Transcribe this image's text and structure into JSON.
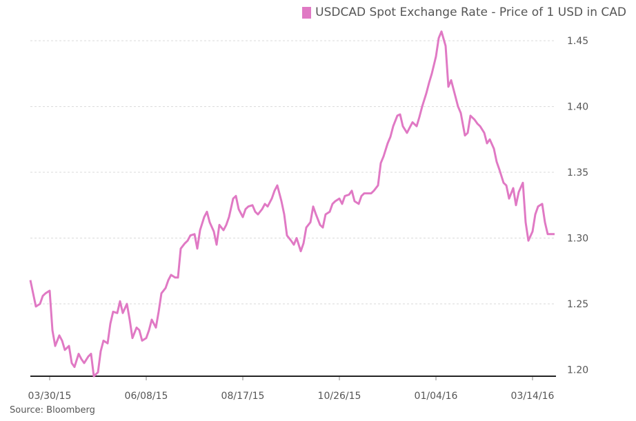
{
  "colors": {
    "series": "#e079c4",
    "grid": "#d9d9d9",
    "axis": "#222222",
    "text": "#555555"
  },
  "legend": {
    "label": "USDCAD Spot Exchange Rate - Price of 1 USD in CAD"
  },
  "source": "Source: Bloomberg",
  "chart_data": {
    "type": "line",
    "title": "",
    "xlabel": "",
    "ylabel": "",
    "ylim": [
      1.195,
      1.46
    ],
    "y_ticks": [
      1.2,
      1.25,
      1.3,
      1.35,
      1.4,
      1.45
    ],
    "y_tick_labels": [
      "1.20",
      "1.25",
      "1.30",
      "1.35",
      "1.40",
      "1.45"
    ],
    "x_ticks": [
      "2015-03-30",
      "2015-06-08",
      "2015-08-17",
      "2015-10-26",
      "2016-01-04",
      "2016-03-14"
    ],
    "x_tick_labels": [
      "03/30/15",
      "06/08/15",
      "08/17/15",
      "10/26/15",
      "01/04/16",
      "03/14/16"
    ],
    "xlim": [
      "2015-03-16",
      "2016-03-31"
    ],
    "grid": true,
    "legend_position": "top-right",
    "series": [
      {
        "name": "USDCAD Spot Exchange Rate - Price of 1 USD in CAD",
        "x": [
          "2015-03-16",
          "2015-03-18",
          "2015-03-20",
          "2015-03-23",
          "2015-03-25",
          "2015-03-27",
          "2015-03-30",
          "2015-04-01",
          "2015-04-03",
          "2015-04-06",
          "2015-04-08",
          "2015-04-10",
          "2015-04-13",
          "2015-04-15",
          "2015-04-17",
          "2015-04-20",
          "2015-04-22",
          "2015-04-24",
          "2015-04-27",
          "2015-04-29",
          "2015-05-01",
          "2015-05-04",
          "2015-05-06",
          "2015-05-08",
          "2015-05-11",
          "2015-05-13",
          "2015-05-15",
          "2015-05-18",
          "2015-05-20",
          "2015-05-22",
          "2015-05-25",
          "2015-05-27",
          "2015-05-29",
          "2015-06-01",
          "2015-06-03",
          "2015-06-05",
          "2015-06-08",
          "2015-06-10",
          "2015-06-12",
          "2015-06-15",
          "2015-06-17",
          "2015-06-19",
          "2015-06-22",
          "2015-06-24",
          "2015-06-26",
          "2015-06-29",
          "2015-07-01",
          "2015-07-03",
          "2015-07-06",
          "2015-07-08",
          "2015-07-10",
          "2015-07-13",
          "2015-07-15",
          "2015-07-17",
          "2015-07-20",
          "2015-07-22",
          "2015-07-24",
          "2015-07-27",
          "2015-07-29",
          "2015-07-31",
          "2015-08-03",
          "2015-08-05",
          "2015-08-07",
          "2015-08-10",
          "2015-08-12",
          "2015-08-14",
          "2015-08-17",
          "2015-08-19",
          "2015-08-21",
          "2015-08-24",
          "2015-08-26",
          "2015-08-28",
          "2015-08-31",
          "2015-09-02",
          "2015-09-04",
          "2015-09-07",
          "2015-09-09",
          "2015-09-11",
          "2015-09-14",
          "2015-09-16",
          "2015-09-18",
          "2015-09-21",
          "2015-09-23",
          "2015-09-25",
          "2015-09-28",
          "2015-09-30",
          "2015-10-02",
          "2015-10-05",
          "2015-10-07",
          "2015-10-09",
          "2015-10-12",
          "2015-10-14",
          "2015-10-16",
          "2015-10-19",
          "2015-10-21",
          "2015-10-23",
          "2015-10-26",
          "2015-10-28",
          "2015-10-30",
          "2015-11-02",
          "2015-11-04",
          "2015-11-06",
          "2015-11-09",
          "2015-11-11",
          "2015-11-13",
          "2015-11-16",
          "2015-11-18",
          "2015-11-20",
          "2015-11-23",
          "2015-11-25",
          "2015-11-27",
          "2015-11-30",
          "2015-12-02",
          "2015-12-04",
          "2015-12-07",
          "2015-12-09",
          "2015-12-11",
          "2015-12-14",
          "2015-12-16",
          "2015-12-18",
          "2015-12-21",
          "2015-12-23",
          "2015-12-25",
          "2015-12-28",
          "2015-12-30",
          "2016-01-01",
          "2016-01-04",
          "2016-01-06",
          "2016-01-08",
          "2016-01-11",
          "2016-01-13",
          "2016-01-15",
          "2016-01-18",
          "2016-01-20",
          "2016-01-22",
          "2016-01-25",
          "2016-01-27",
          "2016-01-29",
          "2016-02-01",
          "2016-02-03",
          "2016-02-05",
          "2016-02-08",
          "2016-02-10",
          "2016-02-12",
          "2016-02-15",
          "2016-02-17",
          "2016-02-19",
          "2016-02-22",
          "2016-02-24",
          "2016-02-26",
          "2016-02-29",
          "2016-03-02",
          "2016-03-04",
          "2016-03-07",
          "2016-03-09",
          "2016-03-11",
          "2016-03-14",
          "2016-03-16",
          "2016-03-18",
          "2016-03-21",
          "2016-03-23",
          "2016-03-25",
          "2016-03-28",
          "2016-03-30"
        ],
        "y": [
          1.268,
          1.258,
          1.248,
          1.25,
          1.256,
          1.258,
          1.26,
          1.23,
          1.218,
          1.226,
          1.222,
          1.215,
          1.218,
          1.205,
          1.202,
          1.212,
          1.208,
          1.205,
          1.21,
          1.212,
          1.195,
          1.198,
          1.214,
          1.222,
          1.22,
          1.235,
          1.244,
          1.243,
          1.252,
          1.243,
          1.25,
          1.238,
          1.224,
          1.232,
          1.23,
          1.222,
          1.224,
          1.23,
          1.238,
          1.232,
          1.244,
          1.258,
          1.262,
          1.268,
          1.272,
          1.27,
          1.27,
          1.292,
          1.296,
          1.298,
          1.302,
          1.303,
          1.292,
          1.306,
          1.316,
          1.32,
          1.312,
          1.305,
          1.295,
          1.31,
          1.306,
          1.31,
          1.316,
          1.33,
          1.332,
          1.322,
          1.316,
          1.322,
          1.324,
          1.325,
          1.32,
          1.318,
          1.322,
          1.326,
          1.324,
          1.33,
          1.336,
          1.34,
          1.328,
          1.318,
          1.302,
          1.298,
          1.295,
          1.3,
          1.29,
          1.296,
          1.308,
          1.312,
          1.324,
          1.318,
          1.31,
          1.308,
          1.318,
          1.32,
          1.326,
          1.328,
          1.33,
          1.326,
          1.332,
          1.333,
          1.336,
          1.328,
          1.326,
          1.332,
          1.334,
          1.334,
          1.334,
          1.336,
          1.34,
          1.357,
          1.362,
          1.372,
          1.377,
          1.385,
          1.393,
          1.394,
          1.385,
          1.38,
          1.384,
          1.388,
          1.385,
          1.392,
          1.4,
          1.41,
          1.418,
          1.425,
          1.438,
          1.452,
          1.457,
          1.446,
          1.415,
          1.42,
          1.408,
          1.4,
          1.395,
          1.378,
          1.38,
          1.393,
          1.39,
          1.387,
          1.385,
          1.38,
          1.372,
          1.375,
          1.368,
          1.358,
          1.352,
          1.342,
          1.34,
          1.33,
          1.338,
          1.325,
          1.335,
          1.342,
          1.312,
          1.298,
          1.305,
          1.318,
          1.324,
          1.326,
          1.312,
          1.303,
          1.303,
          1.303
        ]
      }
    ]
  }
}
